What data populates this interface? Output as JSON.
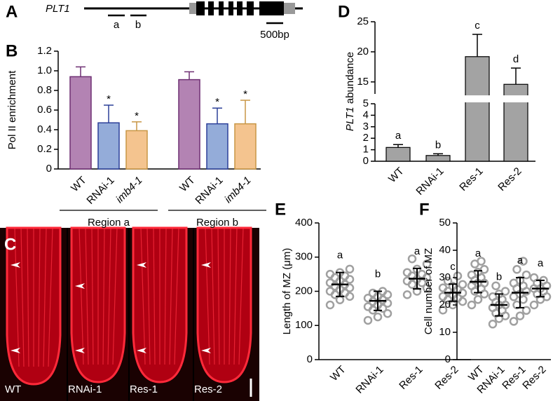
{
  "panel_labels": [
    "A",
    "B",
    "C",
    "D",
    "E",
    "F"
  ],
  "gene_diagram": {
    "gene": "PLT1",
    "regions": [
      "a",
      "b"
    ],
    "scale_bar": "500bp"
  },
  "micrograph": {
    "labels": [
      "WT",
      "RNAi-1",
      "Res-1",
      "Res-2"
    ]
  },
  "chart_data": [
    {
      "type": "grouped_bar",
      "ylabel": "Pol II enrichment",
      "ylim": [
        0,
        1.2
      ],
      "yticks": [
        0,
        0.2,
        0.4,
        0.6,
        0.8,
        {
          "value": 1,
          "label": "1.0"
        },
        1.2
      ],
      "categories": [
        "Region a",
        "Region b"
      ],
      "series": [
        {
          "name": "WT",
          "color": "#b383b3",
          "edge": "#6e2f73",
          "values": [
            0.94,
            0.91
          ],
          "errors": [
            0.1,
            0.08
          ]
        },
        {
          "name": "RNAi-1",
          "color": "#94acd9",
          "edge": "#2b3f99",
          "values": [
            0.47,
            0.46
          ],
          "errors": [
            0.18,
            0.16
          ],
          "annotations": [
            "*",
            "*"
          ]
        },
        {
          "name": "imb4-1",
          "italic": true,
          "color": "#f4c48f",
          "edge": "#c89645",
          "values": [
            0.39,
            0.46
          ],
          "errors": [
            0.09,
            0.24
          ],
          "annotations": [
            "*",
            "*"
          ]
        }
      ]
    },
    {
      "type": "broken_bar",
      "ylabel_italic": "PLT1",
      "ylabel": "abundance",
      "ylim": [
        0,
        25
      ],
      "axis_break": [
        5,
        13
      ],
      "yticks": [
        0,
        1,
        2,
        3,
        4,
        5,
        15,
        20,
        25
      ],
      "categories": [
        "WT",
        "RNAi-1",
        "Res-1",
        "Res-2"
      ],
      "values": [
        1.2,
        0.5,
        19.2,
        14.6
      ],
      "errors": [
        0.25,
        0.15,
        3.7,
        2.7
      ],
      "letters": [
        "a",
        "b",
        "c",
        "d"
      ],
      "color": "#a3a3a3"
    },
    {
      "type": "dot_plot",
      "ylabel": "Length of MZ (μm)",
      "ylim": [
        0,
        400
      ],
      "yticks": [
        0,
        100,
        200,
        300,
        400
      ],
      "color": "#a0a0a0",
      "groups": [
        {
          "name": "WT",
          "letter": "a",
          "mean": 220,
          "sd": 35,
          "points": [
            160,
            175,
            185,
            190,
            195,
            200,
            205,
            210,
            215,
            220,
            225,
            230,
            235,
            240,
            245,
            250,
            255,
            265
          ]
        },
        {
          "name": "RNAi-1",
          "letter": "b",
          "mean": 172,
          "sd": 28,
          "points": [
            115,
            125,
            135,
            145,
            150,
            155,
            160,
            165,
            170,
            175,
            180,
            185,
            190,
            195,
            200
          ]
        },
        {
          "name": "Res-1",
          "letter": "a",
          "mean": 237,
          "sd": 30,
          "points": [
            190,
            200,
            210,
            220,
            225,
            230,
            235,
            240,
            245,
            250,
            255,
            265,
            280,
            295
          ]
        },
        {
          "name": "Res-2",
          "letter": "c",
          "mean": 196,
          "sd": 25,
          "points": [
            145,
            160,
            170,
            175,
            180,
            185,
            190,
            195,
            200,
            205,
            210,
            215,
            220,
            230,
            245
          ]
        }
      ]
    },
    {
      "type": "dot_plot",
      "ylabel": "Cell number of MZ",
      "ylim": [
        0,
        50
      ],
      "yticks": [
        0,
        10,
        20,
        30,
        40,
        50
      ],
      "color": "#a0a0a0",
      "groups": [
        {
          "name": "WT",
          "letter": "a",
          "mean": 28.5,
          "sd": 4,
          "points": [
            20,
            22,
            24,
            25,
            26,
            27,
            28,
            28,
            29,
            30,
            31,
            32,
            33,
            35,
            36
          ]
        },
        {
          "name": "RNAi-1",
          "letter": "b",
          "mean": 20,
          "sd": 4,
          "points": [
            13,
            15,
            16,
            17,
            18,
            19,
            20,
            20,
            21,
            22,
            23,
            24,
            25,
            27
          ]
        },
        {
          "name": "Res-1",
          "letter": "a",
          "mean": 24.5,
          "sd": 5.5,
          "points": [
            14,
            16,
            18,
            20,
            22,
            23,
            24,
            25,
            26,
            27,
            28,
            29,
            31,
            33,
            36
          ]
        },
        {
          "name": "Res-2",
          "letter": "a",
          "mean": 26,
          "sd": 3,
          "points": [
            20,
            22,
            23,
            24,
            25,
            26,
            26,
            27,
            28,
            29,
            30
          ]
        }
      ]
    }
  ]
}
